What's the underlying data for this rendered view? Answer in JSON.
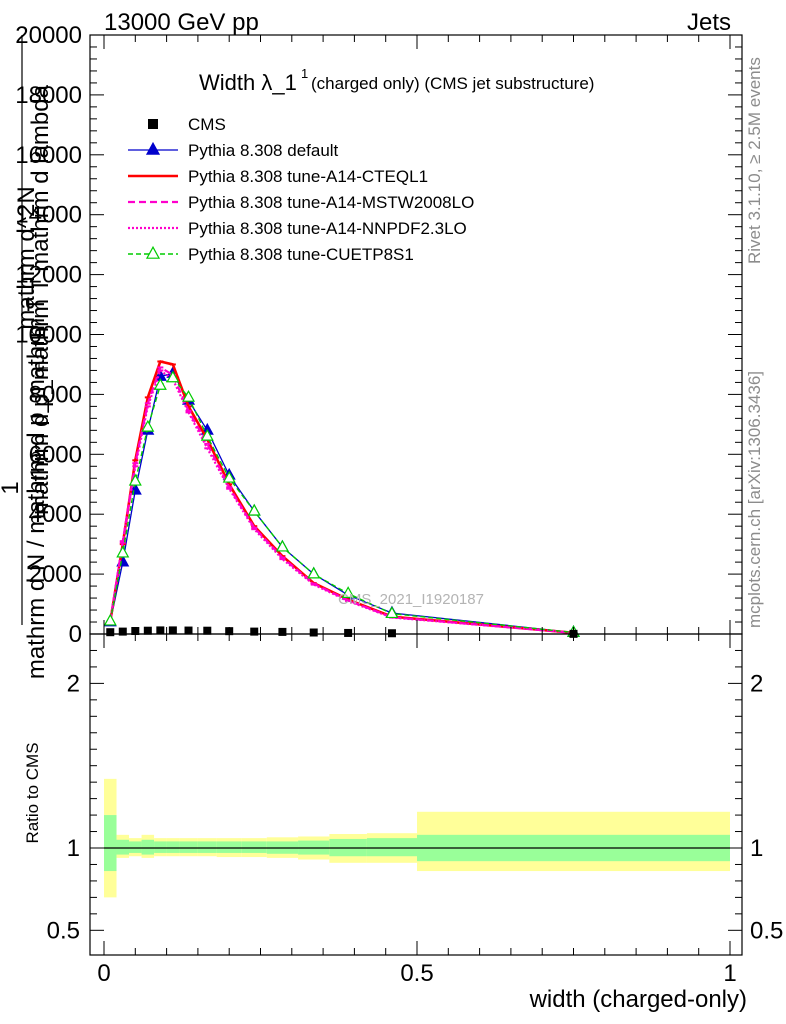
{
  "header": {
    "left_label": "13000 GeV pp",
    "right_label": "Jets"
  },
  "side_labels": {
    "rivet": "Rivet 3.1.10, ≥ 2.5M events",
    "mcplots": "mcplots.cern.ch [arXiv:1306.3436]"
  },
  "colors": {
    "cms": "#000000",
    "default": "#0000cc",
    "cteql1": "#ff0000",
    "mstw": "#ff00cc",
    "nnpdf": "#ff00cc",
    "cuetp8s1": "#00cc00",
    "band_inner": "#99ff99",
    "band_outer": "#ffff99"
  },
  "chart_data": [
    {
      "type": "line",
      "title": "Width λ_1",
      "title_superscript": "1",
      "subtitle": "(charged only) (CMS jet substructure)",
      "ylabel_numerator": "1",
      "ylabel_denominator": "mathrm d N / mathrm d p_mathrm T",
      "ylabel_upper": "mathrm d^2N",
      "ylabel_upper_denominator": "mathrm d p_mathrm T mathrm d lambda",
      "ylabel_T": "T",
      "watermark": "CMS_2021_I1920187",
      "xlim": [
        0,
        1
      ],
      "ylim": [
        0,
        20000
      ],
      "yticks": [
        "0",
        "2000",
        "4000",
        "6000",
        "8000",
        "10000",
        "12000",
        "14000",
        "16000",
        "18000",
        "20000"
      ],
      "legend_position": "top-left",
      "legend": [
        {
          "key": "cms",
          "label": "CMS",
          "style": "square"
        },
        {
          "key": "default",
          "label": "Pythia 8.308 default",
          "style": "solid-triangle"
        },
        {
          "key": "cteql1",
          "label": "Pythia 8.308 tune-A14-CTEQL1",
          "style": "solid-thick"
        },
        {
          "key": "mstw",
          "label": "Pythia 8.308 tune-A14-MSTW2008LO",
          "style": "dashed"
        },
        {
          "key": "nnpdf",
          "label": "Pythia 8.308 tune-A14-NNPDF2.3LO",
          "style": "dotted"
        },
        {
          "key": "cuetp8s1",
          "label": "Pythia 8.308 tune-CUETP8S1",
          "style": "dashed-open-triangle"
        }
      ],
      "x": [
        0.01,
        0.03,
        0.05,
        0.07,
        0.09,
        0.11,
        0.135,
        0.165,
        0.2,
        0.24,
        0.285,
        0.335,
        0.39,
        0.46,
        0.75
      ],
      "cms_values": [
        60,
        80,
        100,
        110,
        120,
        120,
        115,
        110,
        95,
        80,
        70,
        50,
        35,
        25,
        5
      ],
      "series": [
        {
          "key": "default",
          "name": "Pythia 8.308 default",
          "values": [
            400,
            2400,
            4800,
            6800,
            8600,
            8700,
            7800,
            6800,
            5300,
            4100,
            2900,
            2000,
            1300,
            700,
            50
          ]
        },
        {
          "key": "cteql1",
          "name": "Pythia 8.308 tune-A14-CTEQL1",
          "values": [
            420,
            3000,
            5800,
            7900,
            9100,
            9000,
            7600,
            6500,
            5000,
            3600,
            2600,
            1700,
            1150,
            580,
            40
          ]
        },
        {
          "key": "mstw",
          "name": "Pythia 8.308 tune-A14-MSTW2008LO",
          "values": [
            430,
            3100,
            5700,
            7700,
            8900,
            8650,
            7450,
            6350,
            4900,
            3550,
            2550,
            1680,
            1120,
            560,
            40
          ]
        },
        {
          "key": "nnpdf",
          "name": "Pythia 8.308 tune-A14-NNPDF2.3LO",
          "values": [
            430,
            3050,
            5600,
            7600,
            8800,
            8500,
            7400,
            6200,
            4850,
            3500,
            2500,
            1650,
            1100,
            550,
            40
          ]
        },
        {
          "key": "cuetp8s1",
          "name": "Pythia 8.308 tune-CUETP8S1",
          "values": [
            430,
            2700,
            5100,
            6900,
            8300,
            8550,
            7900,
            6600,
            5200,
            4100,
            2900,
            2000,
            1350,
            680,
            50
          ]
        }
      ]
    },
    {
      "type": "area",
      "ylabel": "Ratio to CMS",
      "xlabel": "width (charged-only)",
      "xlim": [
        0,
        1
      ],
      "ylim": [
        0.35,
        2.3
      ],
      "yticks": [
        "0.5",
        "1",
        "2"
      ],
      "xticks": [
        "0",
        "0.5",
        "1"
      ],
      "bin_edges": [
        0,
        0.02,
        0.04,
        0.06,
        0.08,
        0.1,
        0.12,
        0.15,
        0.18,
        0.22,
        0.26,
        0.31,
        0.36,
        0.42,
        0.5,
        1.0
      ],
      "inner_band": [
        [
          0.86,
          1.2
        ],
        [
          0.96,
          1.05
        ],
        [
          0.97,
          1.04
        ],
        [
          0.96,
          1.05
        ],
        [
          0.97,
          1.04
        ],
        [
          0.97,
          1.04
        ],
        [
          0.97,
          1.04
        ],
        [
          0.97,
          1.04
        ],
        [
          0.97,
          1.04
        ],
        [
          0.97,
          1.04
        ],
        [
          0.965,
          1.04
        ],
        [
          0.96,
          1.045
        ],
        [
          0.95,
          1.055
        ],
        [
          0.95,
          1.06
        ],
        [
          0.92,
          1.08
        ]
      ],
      "outer_band": [
        [
          0.7,
          1.42
        ],
        [
          0.94,
          1.08
        ],
        [
          0.95,
          1.06
        ],
        [
          0.94,
          1.08
        ],
        [
          0.95,
          1.06
        ],
        [
          0.95,
          1.06
        ],
        [
          0.95,
          1.06
        ],
        [
          0.95,
          1.06
        ],
        [
          0.945,
          1.06
        ],
        [
          0.945,
          1.06
        ],
        [
          0.94,
          1.065
        ],
        [
          0.93,
          1.07
        ],
        [
          0.91,
          1.085
        ],
        [
          0.91,
          1.09
        ],
        [
          0.86,
          1.22
        ]
      ]
    }
  ]
}
